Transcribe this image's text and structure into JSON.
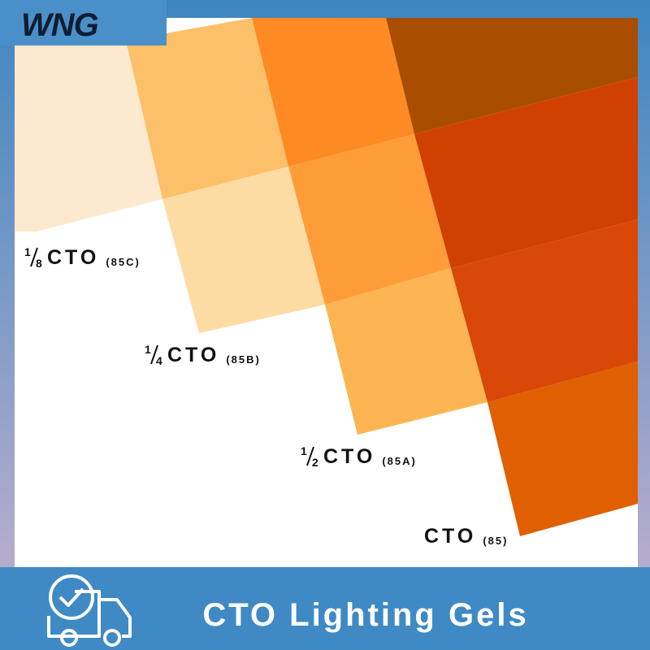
{
  "logo": "WNG",
  "labels": [
    {
      "numerator": "1",
      "denominator": "8",
      "name": "CTO",
      "code": "(85C)"
    },
    {
      "numerator": "1",
      "denominator": "4",
      "name": "CTO",
      "code": "(85B)"
    },
    {
      "numerator": "1",
      "denominator": "2",
      "name": "CTO",
      "code": "(85A)"
    },
    {
      "name": "CTO",
      "code": "(85)"
    }
  ],
  "footer": {
    "title": "CTO Lighting Gels"
  }
}
